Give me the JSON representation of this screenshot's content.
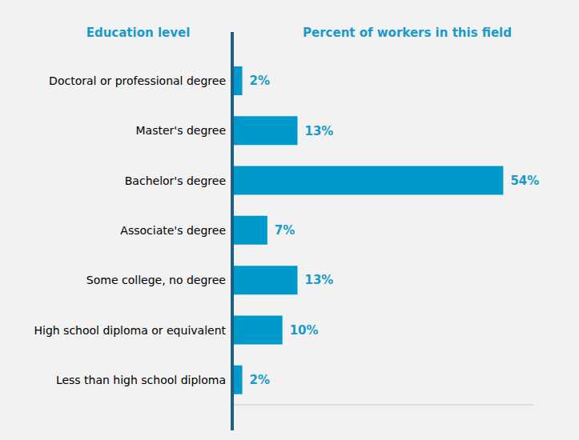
{
  "chart_data": {
    "type": "bar",
    "orientation": "horizontal",
    "ylabel": "Education level",
    "xlabel": "Percent of workers in this field",
    "categories": [
      "Doctoral or professional degree",
      "Master's degree",
      "Bachelor's degree",
      "Associate's degree",
      "Some college, no degree",
      "High school diploma or equivalent",
      "Less than high school diploma"
    ],
    "values": [
      2,
      13,
      54,
      7,
      13,
      10,
      2
    ],
    "value_labels": [
      "2%",
      "13%",
      "54%",
      "7%",
      "13%",
      "10%",
      "2%"
    ],
    "data_labels": true,
    "tick_labels": "y",
    "color": "#0099cc",
    "xlim": [
      0,
      60
    ],
    "grid": false
  }
}
